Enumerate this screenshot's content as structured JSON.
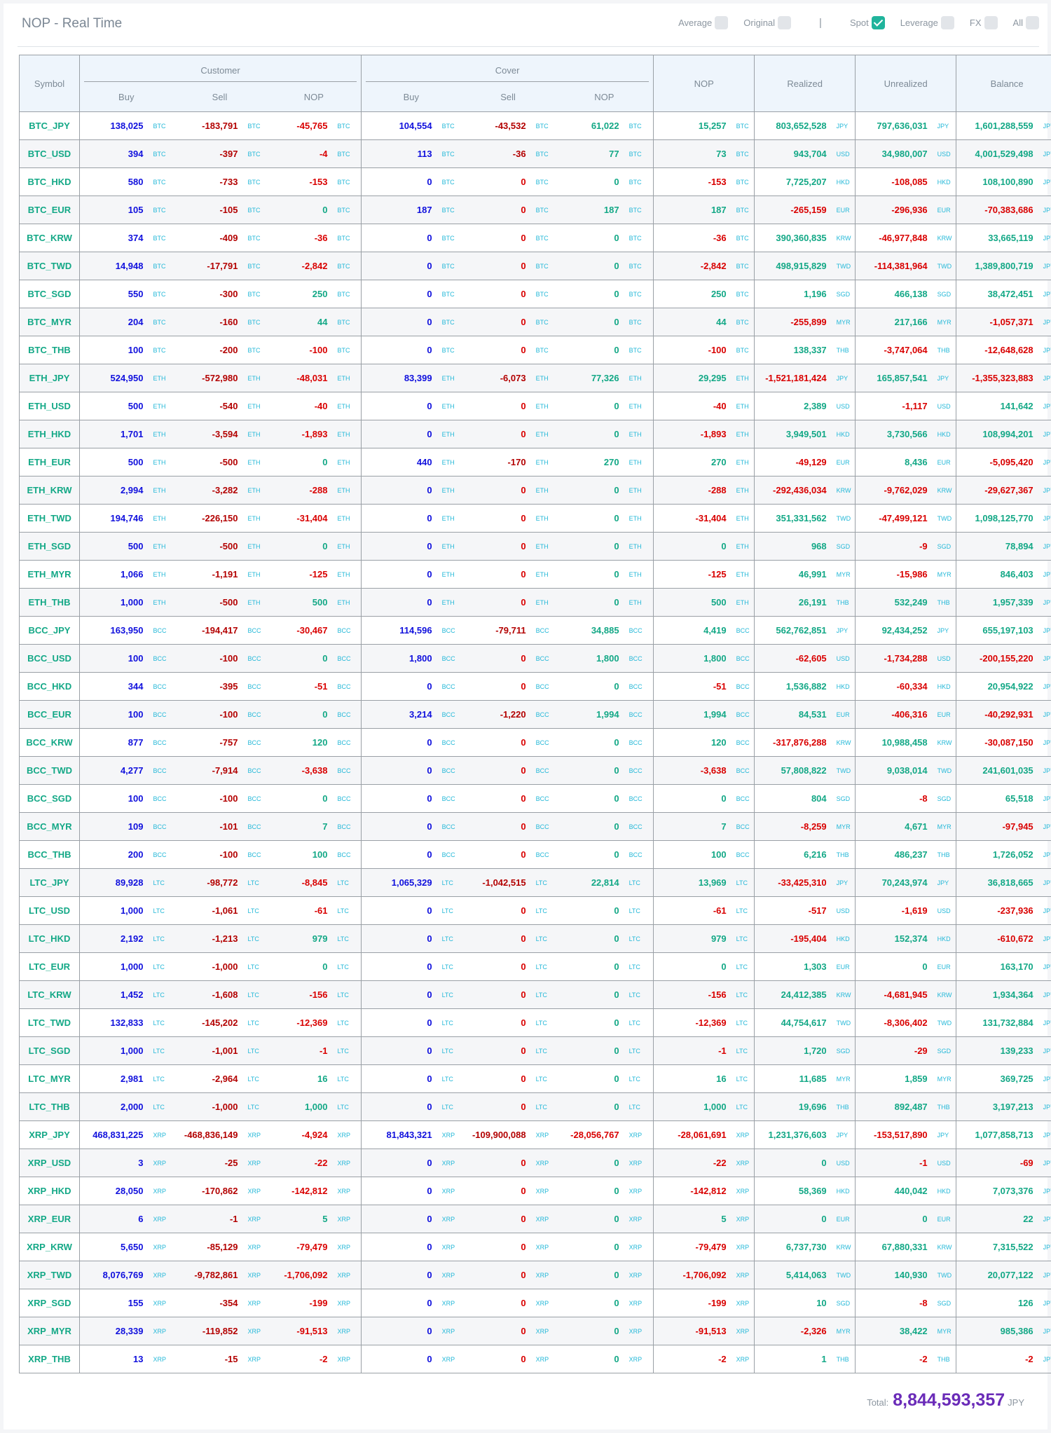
{
  "header": {
    "title": "NOP - Real Time",
    "separator": "|",
    "filters": [
      {
        "label": "Average",
        "checked": false
      },
      {
        "label": "Original",
        "checked": false
      },
      {
        "label": "Spot",
        "checked": true
      },
      {
        "label": "Leverage",
        "checked": false
      },
      {
        "label": "FX",
        "checked": false
      },
      {
        "label": "All",
        "checked": false
      }
    ]
  },
  "table": {
    "headers": {
      "symbol": "Symbol",
      "customer": "Customer",
      "cover": "Cover",
      "buy": "Buy",
      "sell": "Sell",
      "nop": "NOP",
      "realized": "Realized",
      "unrealized": "Unrealized",
      "balance": "Balance"
    },
    "rows": [
      [
        "BTC_JPY",
        "138,025",
        "BTC",
        "-183,791",
        "BTC",
        "-45,765",
        "BTC",
        "104,554",
        "BTC",
        "-43,532",
        "BTC",
        "61,022",
        "BTC",
        "15,257",
        "BTC",
        "803,652,528",
        "JPY",
        "797,636,031",
        "JPY",
        "1,601,288,559",
        "JPY"
      ],
      [
        "BTC_USD",
        "394",
        "BTC",
        "-397",
        "BTC",
        "-4",
        "BTC",
        "113",
        "BTC",
        "-36",
        "BTC",
        "77",
        "BTC",
        "73",
        "BTC",
        "943,704",
        "USD",
        "34,980,007",
        "USD",
        "4,001,529,498",
        "JPY"
      ],
      [
        "BTC_HKD",
        "580",
        "BTC",
        "-733",
        "BTC",
        "-153",
        "BTC",
        "0",
        "BTC",
        "0",
        "BTC",
        "0",
        "BTC",
        "-153",
        "BTC",
        "7,725,207",
        "HKD",
        "-108,085",
        "HKD",
        "108,100,890",
        "JPY"
      ],
      [
        "BTC_EUR",
        "105",
        "BTC",
        "-105",
        "BTC",
        "0",
        "BTC",
        "187",
        "BTC",
        "0",
        "BTC",
        "187",
        "BTC",
        "187",
        "BTC",
        "-265,159",
        "EUR",
        "-296,936",
        "EUR",
        "-70,383,686",
        "JPY"
      ],
      [
        "BTC_KRW",
        "374",
        "BTC",
        "-409",
        "BTC",
        "-36",
        "BTC",
        "0",
        "BTC",
        "0",
        "BTC",
        "0",
        "BTC",
        "-36",
        "BTC",
        "390,360,835",
        "KRW",
        "-46,977,848",
        "KRW",
        "33,665,119",
        "JPY"
      ],
      [
        "BTC_TWD",
        "14,948",
        "BTC",
        "-17,791",
        "BTC",
        "-2,842",
        "BTC",
        "0",
        "BTC",
        "0",
        "BTC",
        "0",
        "BTC",
        "-2,842",
        "BTC",
        "498,915,829",
        "TWD",
        "-114,381,964",
        "TWD",
        "1,389,800,719",
        "JPY"
      ],
      [
        "BTC_SGD",
        "550",
        "BTC",
        "-300",
        "BTC",
        "250",
        "BTC",
        "0",
        "BTC",
        "0",
        "BTC",
        "0",
        "BTC",
        "250",
        "BTC",
        "1,196",
        "SGD",
        "466,138",
        "SGD",
        "38,472,451",
        "JPY"
      ],
      [
        "BTC_MYR",
        "204",
        "BTC",
        "-160",
        "BTC",
        "44",
        "BTC",
        "0",
        "BTC",
        "0",
        "BTC",
        "0",
        "BTC",
        "44",
        "BTC",
        "-255,899",
        "MYR",
        "217,166",
        "MYR",
        "-1,057,371",
        "JPY"
      ],
      [
        "BTC_THB",
        "100",
        "BTC",
        "-200",
        "BTC",
        "-100",
        "BTC",
        "0",
        "BTC",
        "0",
        "BTC",
        "0",
        "BTC",
        "-100",
        "BTC",
        "138,337",
        "THB",
        "-3,747,064",
        "THB",
        "-12,648,628",
        "JPY"
      ],
      [
        "ETH_JPY",
        "524,950",
        "ETH",
        "-572,980",
        "ETH",
        "-48,031",
        "ETH",
        "83,399",
        "ETH",
        "-6,073",
        "ETH",
        "77,326",
        "ETH",
        "29,295",
        "ETH",
        "-1,521,181,424",
        "JPY",
        "165,857,541",
        "JPY",
        "-1,355,323,883",
        "JPY"
      ],
      [
        "ETH_USD",
        "500",
        "ETH",
        "-540",
        "ETH",
        "-40",
        "ETH",
        "0",
        "ETH",
        "0",
        "ETH",
        "0",
        "ETH",
        "-40",
        "ETH",
        "2,389",
        "USD",
        "-1,117",
        "USD",
        "141,642",
        "JPY"
      ],
      [
        "ETH_HKD",
        "1,701",
        "ETH",
        "-3,594",
        "ETH",
        "-1,893",
        "ETH",
        "0",
        "ETH",
        "0",
        "ETH",
        "0",
        "ETH",
        "-1,893",
        "ETH",
        "3,949,501",
        "HKD",
        "3,730,566",
        "HKD",
        "108,994,201",
        "JPY"
      ],
      [
        "ETH_EUR",
        "500",
        "ETH",
        "-500",
        "ETH",
        "0",
        "ETH",
        "440",
        "ETH",
        "-170",
        "ETH",
        "270",
        "ETH",
        "270",
        "ETH",
        "-49,129",
        "EUR",
        "8,436",
        "EUR",
        "-5,095,420",
        "JPY"
      ],
      [
        "ETH_KRW",
        "2,994",
        "ETH",
        "-3,282",
        "ETH",
        "-288",
        "ETH",
        "0",
        "ETH",
        "0",
        "ETH",
        "0",
        "ETH",
        "-288",
        "ETH",
        "-292,436,034",
        "KRW",
        "-9,762,029",
        "KRW",
        "-29,627,367",
        "JPY"
      ],
      [
        "ETH_TWD",
        "194,746",
        "ETH",
        "-226,150",
        "ETH",
        "-31,404",
        "ETH",
        "0",
        "ETH",
        "0",
        "ETH",
        "0",
        "ETH",
        "-31,404",
        "ETH",
        "351,331,562",
        "TWD",
        "-47,499,121",
        "TWD",
        "1,098,125,770",
        "JPY"
      ],
      [
        "ETH_SGD",
        "500",
        "ETH",
        "-500",
        "ETH",
        "0",
        "ETH",
        "0",
        "ETH",
        "0",
        "ETH",
        "0",
        "ETH",
        "0",
        "ETH",
        "968",
        "SGD",
        "-9",
        "SGD",
        "78,894",
        "JPY"
      ],
      [
        "ETH_MYR",
        "1,066",
        "ETH",
        "-1,191",
        "ETH",
        "-125",
        "ETH",
        "0",
        "ETH",
        "0",
        "ETH",
        "0",
        "ETH",
        "-125",
        "ETH",
        "46,991",
        "MYR",
        "-15,986",
        "MYR",
        "846,403",
        "JPY"
      ],
      [
        "ETH_THB",
        "1,000",
        "ETH",
        "-500",
        "ETH",
        "500",
        "ETH",
        "0",
        "ETH",
        "0",
        "ETH",
        "0",
        "ETH",
        "500",
        "ETH",
        "26,191",
        "THB",
        "532,249",
        "THB",
        "1,957,339",
        "JPY"
      ],
      [
        "BCC_JPY",
        "163,950",
        "BCC",
        "-194,417",
        "BCC",
        "-30,467",
        "BCC",
        "114,596",
        "BCC",
        "-79,711",
        "BCC",
        "34,885",
        "BCC",
        "4,419",
        "BCC",
        "562,762,851",
        "JPY",
        "92,434,252",
        "JPY",
        "655,197,103",
        "JPY"
      ],
      [
        "BCC_USD",
        "100",
        "BCC",
        "-100",
        "BCC",
        "0",
        "BCC",
        "1,800",
        "BCC",
        "0",
        "BCC",
        "1,800",
        "BCC",
        "1,800",
        "BCC",
        "-62,605",
        "USD",
        "-1,734,288",
        "USD",
        "-200,155,220",
        "JPY"
      ],
      [
        "BCC_HKD",
        "344",
        "BCC",
        "-395",
        "BCC",
        "-51",
        "BCC",
        "0",
        "BCC",
        "0",
        "BCC",
        "0",
        "BCC",
        "-51",
        "BCC",
        "1,536,882",
        "HKD",
        "-60,334",
        "HKD",
        "20,954,922",
        "JPY"
      ],
      [
        "BCC_EUR",
        "100",
        "BCC",
        "-100",
        "BCC",
        "0",
        "BCC",
        "3,214",
        "BCC",
        "-1,220",
        "BCC",
        "1,994",
        "BCC",
        "1,994",
        "BCC",
        "84,531",
        "EUR",
        "-406,316",
        "EUR",
        "-40,292,931",
        "JPY"
      ],
      [
        "BCC_KRW",
        "877",
        "BCC",
        "-757",
        "BCC",
        "120",
        "BCC",
        "0",
        "BCC",
        "0",
        "BCC",
        "0",
        "BCC",
        "120",
        "BCC",
        "-317,876,288",
        "KRW",
        "10,988,458",
        "KRW",
        "-30,087,150",
        "JPY"
      ],
      [
        "BCC_TWD",
        "4,277",
        "BCC",
        "-7,914",
        "BCC",
        "-3,638",
        "BCC",
        "0",
        "BCC",
        "0",
        "BCC",
        "0",
        "BCC",
        "-3,638",
        "BCC",
        "57,808,822",
        "TWD",
        "9,038,014",
        "TWD",
        "241,601,035",
        "JPY"
      ],
      [
        "BCC_SGD",
        "100",
        "BCC",
        "-100",
        "BCC",
        "0",
        "BCC",
        "0",
        "BCC",
        "0",
        "BCC",
        "0",
        "BCC",
        "0",
        "BCC",
        "804",
        "SGD",
        "-8",
        "SGD",
        "65,518",
        "JPY"
      ],
      [
        "BCC_MYR",
        "109",
        "BCC",
        "-101",
        "BCC",
        "7",
        "BCC",
        "0",
        "BCC",
        "0",
        "BCC",
        "0",
        "BCC",
        "7",
        "BCC",
        "-8,259",
        "MYR",
        "4,671",
        "MYR",
        "-97,945",
        "JPY"
      ],
      [
        "BCC_THB",
        "200",
        "BCC",
        "-100",
        "BCC",
        "100",
        "BCC",
        "0",
        "BCC",
        "0",
        "BCC",
        "0",
        "BCC",
        "100",
        "BCC",
        "6,216",
        "THB",
        "486,237",
        "THB",
        "1,726,052",
        "JPY"
      ],
      [
        "LTC_JPY",
        "89,928",
        "LTC",
        "-98,772",
        "LTC",
        "-8,845",
        "LTC",
        "1,065,329",
        "LTC",
        "-1,042,515",
        "LTC",
        "22,814",
        "LTC",
        "13,969",
        "LTC",
        "-33,425,310",
        "JPY",
        "70,243,974",
        "JPY",
        "36,818,665",
        "JPY"
      ],
      [
        "LTC_USD",
        "1,000",
        "LTC",
        "-1,061",
        "LTC",
        "-61",
        "LTC",
        "0",
        "LTC",
        "0",
        "LTC",
        "0",
        "LTC",
        "-61",
        "LTC",
        "-517",
        "USD",
        "-1,619",
        "USD",
        "-237,936",
        "JPY"
      ],
      [
        "LTC_HKD",
        "2,192",
        "LTC",
        "-1,213",
        "LTC",
        "979",
        "LTC",
        "0",
        "LTC",
        "0",
        "LTC",
        "0",
        "LTC",
        "979",
        "LTC",
        "-195,404",
        "HKD",
        "152,374",
        "HKD",
        "-610,672",
        "JPY"
      ],
      [
        "LTC_EUR",
        "1,000",
        "LTC",
        "-1,000",
        "LTC",
        "0",
        "LTC",
        "0",
        "LTC",
        "0",
        "LTC",
        "0",
        "LTC",
        "0",
        "LTC",
        "1,303",
        "EUR",
        "0",
        "EUR",
        "163,170",
        "JPY"
      ],
      [
        "LTC_KRW",
        "1,452",
        "LTC",
        "-1,608",
        "LTC",
        "-156",
        "LTC",
        "0",
        "LTC",
        "0",
        "LTC",
        "0",
        "LTC",
        "-156",
        "LTC",
        "24,412,385",
        "KRW",
        "-4,681,945",
        "KRW",
        "1,934,364",
        "JPY"
      ],
      [
        "LTC_TWD",
        "132,833",
        "LTC",
        "-145,202",
        "LTC",
        "-12,369",
        "LTC",
        "0",
        "LTC",
        "0",
        "LTC",
        "0",
        "LTC",
        "-12,369",
        "LTC",
        "44,754,617",
        "TWD",
        "-8,306,402",
        "TWD",
        "131,732,884",
        "JPY"
      ],
      [
        "LTC_SGD",
        "1,000",
        "LTC",
        "-1,001",
        "LTC",
        "-1",
        "LTC",
        "0",
        "LTC",
        "0",
        "LTC",
        "0",
        "LTC",
        "-1",
        "LTC",
        "1,720",
        "SGD",
        "-29",
        "SGD",
        "139,233",
        "JPY"
      ],
      [
        "LTC_MYR",
        "2,981",
        "LTC",
        "-2,964",
        "LTC",
        "16",
        "LTC",
        "0",
        "LTC",
        "0",
        "LTC",
        "0",
        "LTC",
        "16",
        "LTC",
        "11,685",
        "MYR",
        "1,859",
        "MYR",
        "369,725",
        "JPY"
      ],
      [
        "LTC_THB",
        "2,000",
        "LTC",
        "-1,000",
        "LTC",
        "1,000",
        "LTC",
        "0",
        "LTC",
        "0",
        "LTC",
        "0",
        "LTC",
        "1,000",
        "LTC",
        "19,696",
        "THB",
        "892,487",
        "THB",
        "3,197,213",
        "JPY"
      ],
      [
        "XRP_JPY",
        "468,831,225",
        "XRP",
        "-468,836,149",
        "XRP",
        "-4,924",
        "XRP",
        "81,843,321",
        "XRP",
        "-109,900,088",
        "XRP",
        "-28,056,767",
        "XRP",
        "-28,061,691",
        "XRP",
        "1,231,376,603",
        "JPY",
        "-153,517,890",
        "JPY",
        "1,077,858,713",
        "JPY"
      ],
      [
        "XRP_USD",
        "3",
        "XRP",
        "-25",
        "XRP",
        "-22",
        "XRP",
        "0",
        "XRP",
        "0",
        "XRP",
        "0",
        "XRP",
        "-22",
        "XRP",
        "0",
        "USD",
        "-1",
        "USD",
        "-69",
        "JPY"
      ],
      [
        "XRP_HKD",
        "28,050",
        "XRP",
        "-170,862",
        "XRP",
        "-142,812",
        "XRP",
        "0",
        "XRP",
        "0",
        "XRP",
        "0",
        "XRP",
        "-142,812",
        "XRP",
        "58,369",
        "HKD",
        "440,042",
        "HKD",
        "7,073,376",
        "JPY"
      ],
      [
        "XRP_EUR",
        "6",
        "XRP",
        "-1",
        "XRP",
        "5",
        "XRP",
        "0",
        "XRP",
        "0",
        "XRP",
        "0",
        "XRP",
        "5",
        "XRP",
        "0",
        "EUR",
        "0",
        "EUR",
        "22",
        "JPY"
      ],
      [
        "XRP_KRW",
        "5,650",
        "XRP",
        "-85,129",
        "XRP",
        "-79,479",
        "XRP",
        "0",
        "XRP",
        "0",
        "XRP",
        "0",
        "XRP",
        "-79,479",
        "XRP",
        "6,737,730",
        "KRW",
        "67,880,331",
        "KRW",
        "7,315,522",
        "JPY"
      ],
      [
        "XRP_TWD",
        "8,076,769",
        "XRP",
        "-9,782,861",
        "XRP",
        "-1,706,092",
        "XRP",
        "0",
        "XRP",
        "0",
        "XRP",
        "0",
        "XRP",
        "-1,706,092",
        "XRP",
        "5,414,063",
        "TWD",
        "140,930",
        "TWD",
        "20,077,122",
        "JPY"
      ],
      [
        "XRP_SGD",
        "155",
        "XRP",
        "-354",
        "XRP",
        "-199",
        "XRP",
        "0",
        "XRP",
        "0",
        "XRP",
        "0",
        "XRP",
        "-199",
        "XRP",
        "10",
        "SGD",
        "-8",
        "SGD",
        "126",
        "JPY"
      ],
      [
        "XRP_MYR",
        "28,339",
        "XRP",
        "-119,852",
        "XRP",
        "-91,513",
        "XRP",
        "0",
        "XRP",
        "0",
        "XRP",
        "0",
        "XRP",
        "-91,513",
        "XRP",
        "-2,326",
        "MYR",
        "38,422",
        "MYR",
        "985,386",
        "JPY"
      ],
      [
        "XRP_THB",
        "13",
        "XRP",
        "-15",
        "XRP",
        "-2",
        "XRP",
        "0",
        "XRP",
        "0",
        "XRP",
        "0",
        "XRP",
        "-2",
        "XRP",
        "1",
        "THB",
        "-2",
        "THB",
        "-2",
        "JPY"
      ]
    ]
  },
  "total": {
    "label": "Total:",
    "value": "8,844,593,357",
    "unit": "JPY"
  },
  "colors": {
    "positive": "#13a886",
    "negative": "#d90000",
    "buy": "#1010dd",
    "sell": "#b30000",
    "unit": "#24b8d8",
    "total": "#6a2bb8",
    "checked": "#20b49c"
  }
}
